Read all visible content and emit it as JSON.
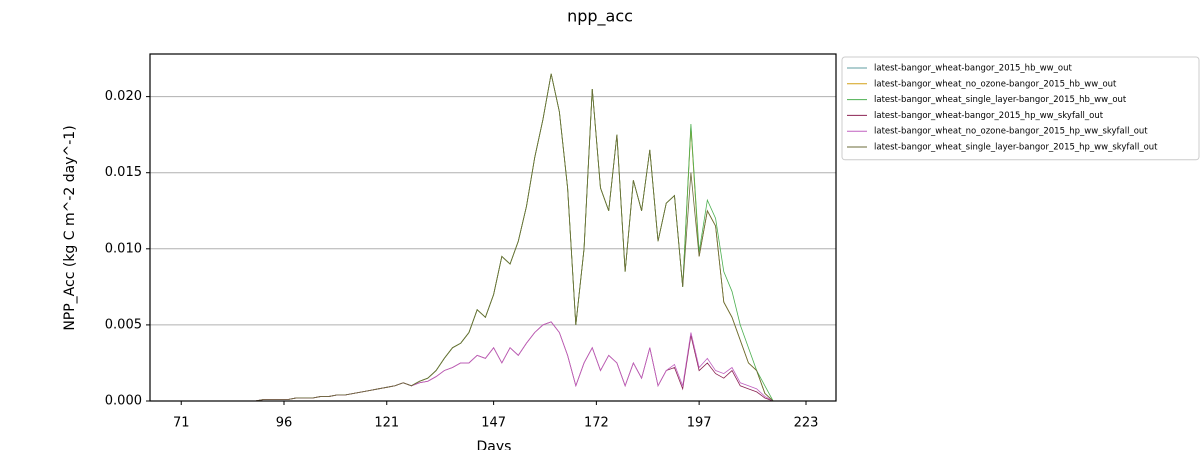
{
  "chart_data": {
    "type": "line",
    "title": "npp_acc",
    "x_label": "Days",
    "y_label": "NPP_Acc (kg C m^-2 day^-1)",
    "xlim": [
      63.4,
      230.3
    ],
    "ylim": [
      0,
      0.0228
    ],
    "xticks": [
      71,
      96,
      121,
      147,
      172,
      197,
      223
    ],
    "yticks": [
      {
        "value": 0,
        "label": "0.000"
      },
      {
        "value": 0.005,
        "label": "0.005"
      },
      {
        "value": 0.01,
        "label": "0.010"
      },
      {
        "value": 0.015,
        "label": "0.015"
      },
      {
        "value": 0.02,
        "label": "0.020"
      }
    ],
    "grid": "y",
    "legend": "outside-upper-right",
    "x": [
      71,
      73,
      75,
      77,
      79,
      81,
      83,
      85,
      87,
      89,
      91,
      93,
      95,
      97,
      99,
      101,
      103,
      105,
      107,
      109,
      111,
      113,
      115,
      117,
      119,
      121,
      123,
      125,
      127,
      129,
      131,
      133,
      135,
      137,
      139,
      141,
      143,
      145,
      147,
      149,
      151,
      153,
      155,
      157,
      159,
      161,
      163,
      165,
      167,
      169,
      171,
      173,
      175,
      177,
      179,
      181,
      183,
      185,
      187,
      189,
      191,
      193,
      195,
      197,
      199,
      201,
      203,
      205,
      207,
      209,
      211,
      213,
      215,
      217,
      219,
      221
    ],
    "series": [
      {
        "name": "latest-bangor_wheat-bangor_2015_hb_ww_out",
        "color": "#5f9ea0",
        "values": [
          0,
          0,
          0,
          0,
          0,
          0,
          0,
          0,
          0,
          0,
          0.0001,
          0.0001,
          0.0001,
          0.0001,
          0.0002,
          0.0002,
          0.0002,
          0.0003,
          0.0003,
          0.0004,
          0.0004,
          0.0005,
          0.0006,
          0.0007,
          0.0008,
          0.0009,
          0.001,
          0.0012,
          0.001,
          0.0013,
          0.0015,
          0.002,
          0.0028,
          0.0035,
          0.0038,
          0.0045,
          0.006,
          0.0055,
          0.007,
          0.0095,
          0.009,
          0.0105,
          0.0128,
          0.016,
          0.0185,
          0.0215,
          0.019,
          0.014,
          0.005,
          0.01,
          0.0205,
          0.014,
          0.0125,
          0.0175,
          0.0085,
          0.0145,
          0.0125,
          0.0165,
          0.0105,
          0.013,
          0.0135,
          0.0075,
          0.018,
          0.0095,
          0.0125,
          0.0115,
          0.0065,
          0.0055,
          0.004,
          0.0025,
          0.002,
          0.0005,
          0,
          0,
          0,
          0
        ]
      },
      {
        "name": "latest-bangor_wheat_no_ozone-bangor_2015_hb_ww_out",
        "color": "#d4a017",
        "values": [
          0,
          0,
          0,
          0,
          0,
          0,
          0,
          0,
          0,
          0,
          0.0001,
          0.0001,
          0.0001,
          0.0001,
          0.0002,
          0.0002,
          0.0002,
          0.0003,
          0.0003,
          0.0004,
          0.0004,
          0.0005,
          0.0006,
          0.0007,
          0.0008,
          0.0009,
          0.001,
          0.0012,
          0.001,
          0.0013,
          0.0015,
          0.002,
          0.0028,
          0.0035,
          0.0038,
          0.0045,
          0.006,
          0.0055,
          0.007,
          0.0095,
          0.009,
          0.0105,
          0.0128,
          0.016,
          0.0185,
          0.0215,
          0.019,
          0.014,
          0.005,
          0.01,
          0.0205,
          0.014,
          0.0125,
          0.0175,
          0.0085,
          0.0145,
          0.0125,
          0.0165,
          0.0105,
          0.013,
          0.0135,
          0.0075,
          0.018,
          0.0095,
          0.0125,
          0.0115,
          0.0065,
          0.0055,
          0.004,
          0.0025,
          0.002,
          0.0005,
          0,
          0,
          0,
          0
        ]
      },
      {
        "name": "latest-bangor_wheat_single_layer-bangor_2015_hb_ww_out",
        "color": "#4caf50",
        "values": [
          0,
          0,
          0,
          0,
          0,
          0,
          0,
          0,
          0,
          0,
          0.0001,
          0.0001,
          0.0001,
          0.0001,
          0.0002,
          0.0002,
          0.0002,
          0.0003,
          0.0003,
          0.0004,
          0.0004,
          0.0005,
          0.0006,
          0.0007,
          0.0008,
          0.0009,
          0.001,
          0.0012,
          0.001,
          0.0013,
          0.0015,
          0.002,
          0.0028,
          0.0035,
          0.0038,
          0.0045,
          0.006,
          0.0055,
          0.007,
          0.0095,
          0.009,
          0.0105,
          0.0128,
          0.016,
          0.0185,
          0.0215,
          0.019,
          0.014,
          0.005,
          0.01,
          0.0205,
          0.014,
          0.0125,
          0.0175,
          0.0085,
          0.0145,
          0.0125,
          0.0165,
          0.0105,
          0.013,
          0.0135,
          0.0075,
          0.0182,
          0.0098,
          0.0132,
          0.012,
          0.0085,
          0.0072,
          0.005,
          0.0035,
          0.002,
          0.001,
          0,
          0,
          0,
          0
        ]
      },
      {
        "name": "latest-bangor_wheat-bangor_2015_hp_ww_skyfall_out",
        "color": "#8b2252",
        "values": [
          0,
          0,
          0,
          0,
          0,
          0,
          0,
          0,
          0,
          0,
          0.0001,
          0.0001,
          0.0001,
          0.0001,
          0.0002,
          0.0002,
          0.0002,
          0.0003,
          0.0003,
          0.0004,
          0.0004,
          0.0005,
          0.0006,
          0.0007,
          0.0008,
          0.0009,
          0.001,
          0.0012,
          0.001,
          0.0012,
          0.0013,
          0.0016,
          0.002,
          0.0022,
          0.0025,
          0.0025,
          0.003,
          0.0028,
          0.0035,
          0.0025,
          0.0035,
          0.003,
          0.0038,
          0.0045,
          0.005,
          0.0052,
          0.0045,
          0.003,
          0.001,
          0.0025,
          0.0035,
          0.002,
          0.003,
          0.0025,
          0.001,
          0.0025,
          0.0015,
          0.0035,
          0.001,
          0.002,
          0.0022,
          0.0008,
          0.0043,
          0.002,
          0.0025,
          0.0018,
          0.0015,
          0.002,
          0.001,
          0.0008,
          0.0006,
          0.0002,
          0,
          0,
          0,
          0
        ]
      },
      {
        "name": "latest-bangor_wheat_no_ozone-bangor_2015_hp_ww_skyfall_out",
        "color": "#c060c0",
        "values": [
          0,
          0,
          0,
          0,
          0,
          0,
          0,
          0,
          0,
          0,
          0.0001,
          0.0001,
          0.0001,
          0.0001,
          0.0002,
          0.0002,
          0.0002,
          0.0003,
          0.0003,
          0.0004,
          0.0004,
          0.0005,
          0.0006,
          0.0007,
          0.0008,
          0.0009,
          0.001,
          0.0012,
          0.001,
          0.0012,
          0.0013,
          0.0016,
          0.002,
          0.0022,
          0.0025,
          0.0025,
          0.003,
          0.0028,
          0.0035,
          0.0025,
          0.0035,
          0.003,
          0.0038,
          0.0045,
          0.005,
          0.0052,
          0.0045,
          0.003,
          0.001,
          0.0025,
          0.0035,
          0.002,
          0.003,
          0.0025,
          0.001,
          0.0025,
          0.0015,
          0.0035,
          0.001,
          0.002,
          0.0024,
          0.001,
          0.0045,
          0.0022,
          0.0028,
          0.002,
          0.0018,
          0.0022,
          0.0012,
          0.001,
          0.0008,
          0.0003,
          0,
          0,
          0,
          0
        ]
      },
      {
        "name": "latest-bangor_wheat_single_layer-bangor_2015_hp_ww_skyfall_out",
        "color": "#6b6b3a",
        "values": [
          0,
          0,
          0,
          0,
          0,
          0,
          0,
          0,
          0,
          0,
          0.0001,
          0.0001,
          0.0001,
          0.0001,
          0.0002,
          0.0002,
          0.0002,
          0.0003,
          0.0003,
          0.0004,
          0.0004,
          0.0005,
          0.0006,
          0.0007,
          0.0008,
          0.0009,
          0.001,
          0.0012,
          0.001,
          0.0013,
          0.0015,
          0.002,
          0.0028,
          0.0035,
          0.0038,
          0.0045,
          0.006,
          0.0055,
          0.007,
          0.0095,
          0.009,
          0.0105,
          0.0128,
          0.016,
          0.0185,
          0.0215,
          0.019,
          0.014,
          0.005,
          0.01,
          0.0205,
          0.014,
          0.0125,
          0.0175,
          0.0085,
          0.0145,
          0.0125,
          0.0165,
          0.0105,
          0.013,
          0.0135,
          0.0075,
          0.015,
          0.0095,
          0.0125,
          0.0115,
          0.0065,
          0.0055,
          0.004,
          0.0025,
          0.002,
          0.0005,
          0,
          0,
          0,
          0
        ]
      }
    ]
  }
}
